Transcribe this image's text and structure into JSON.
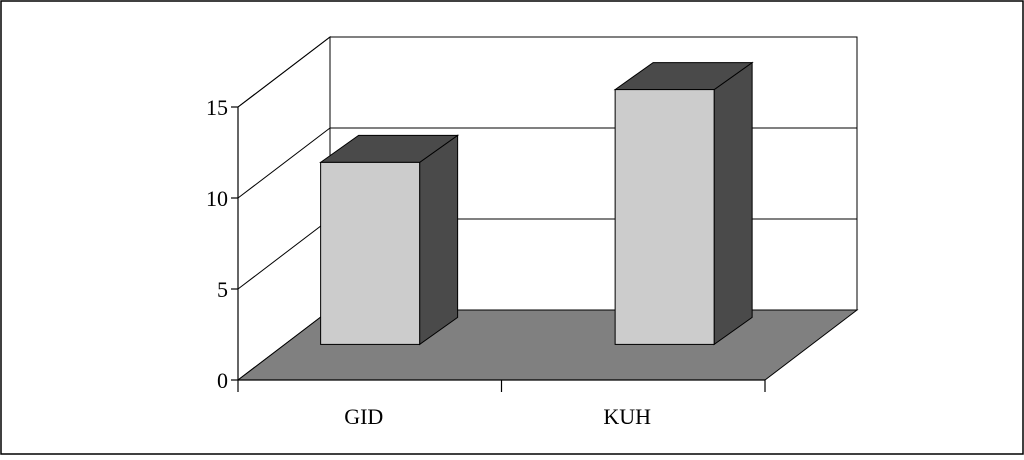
{
  "chart_data": {
    "type": "bar",
    "title": "",
    "xlabel": "",
    "ylabel": "",
    "categories": [
      "GID",
      "KUH"
    ],
    "series": [
      {
        "values": [
          10,
          14
        ]
      }
    ],
    "ylim": [
      0,
      15
    ],
    "yticks": [
      0,
      5,
      10,
      15
    ],
    "y_tick_labels": [
      "0",
      "5",
      "10",
      "15"
    ],
    "projection": "3d",
    "grid": true,
    "legend": "none",
    "colors": {
      "bar_front": "#cccccc",
      "bar_side": "#4a4a4a",
      "bar_top": "#4a4a4a",
      "floor": "#808080",
      "walls": "#ffffff",
      "lines": "#000000"
    }
  }
}
